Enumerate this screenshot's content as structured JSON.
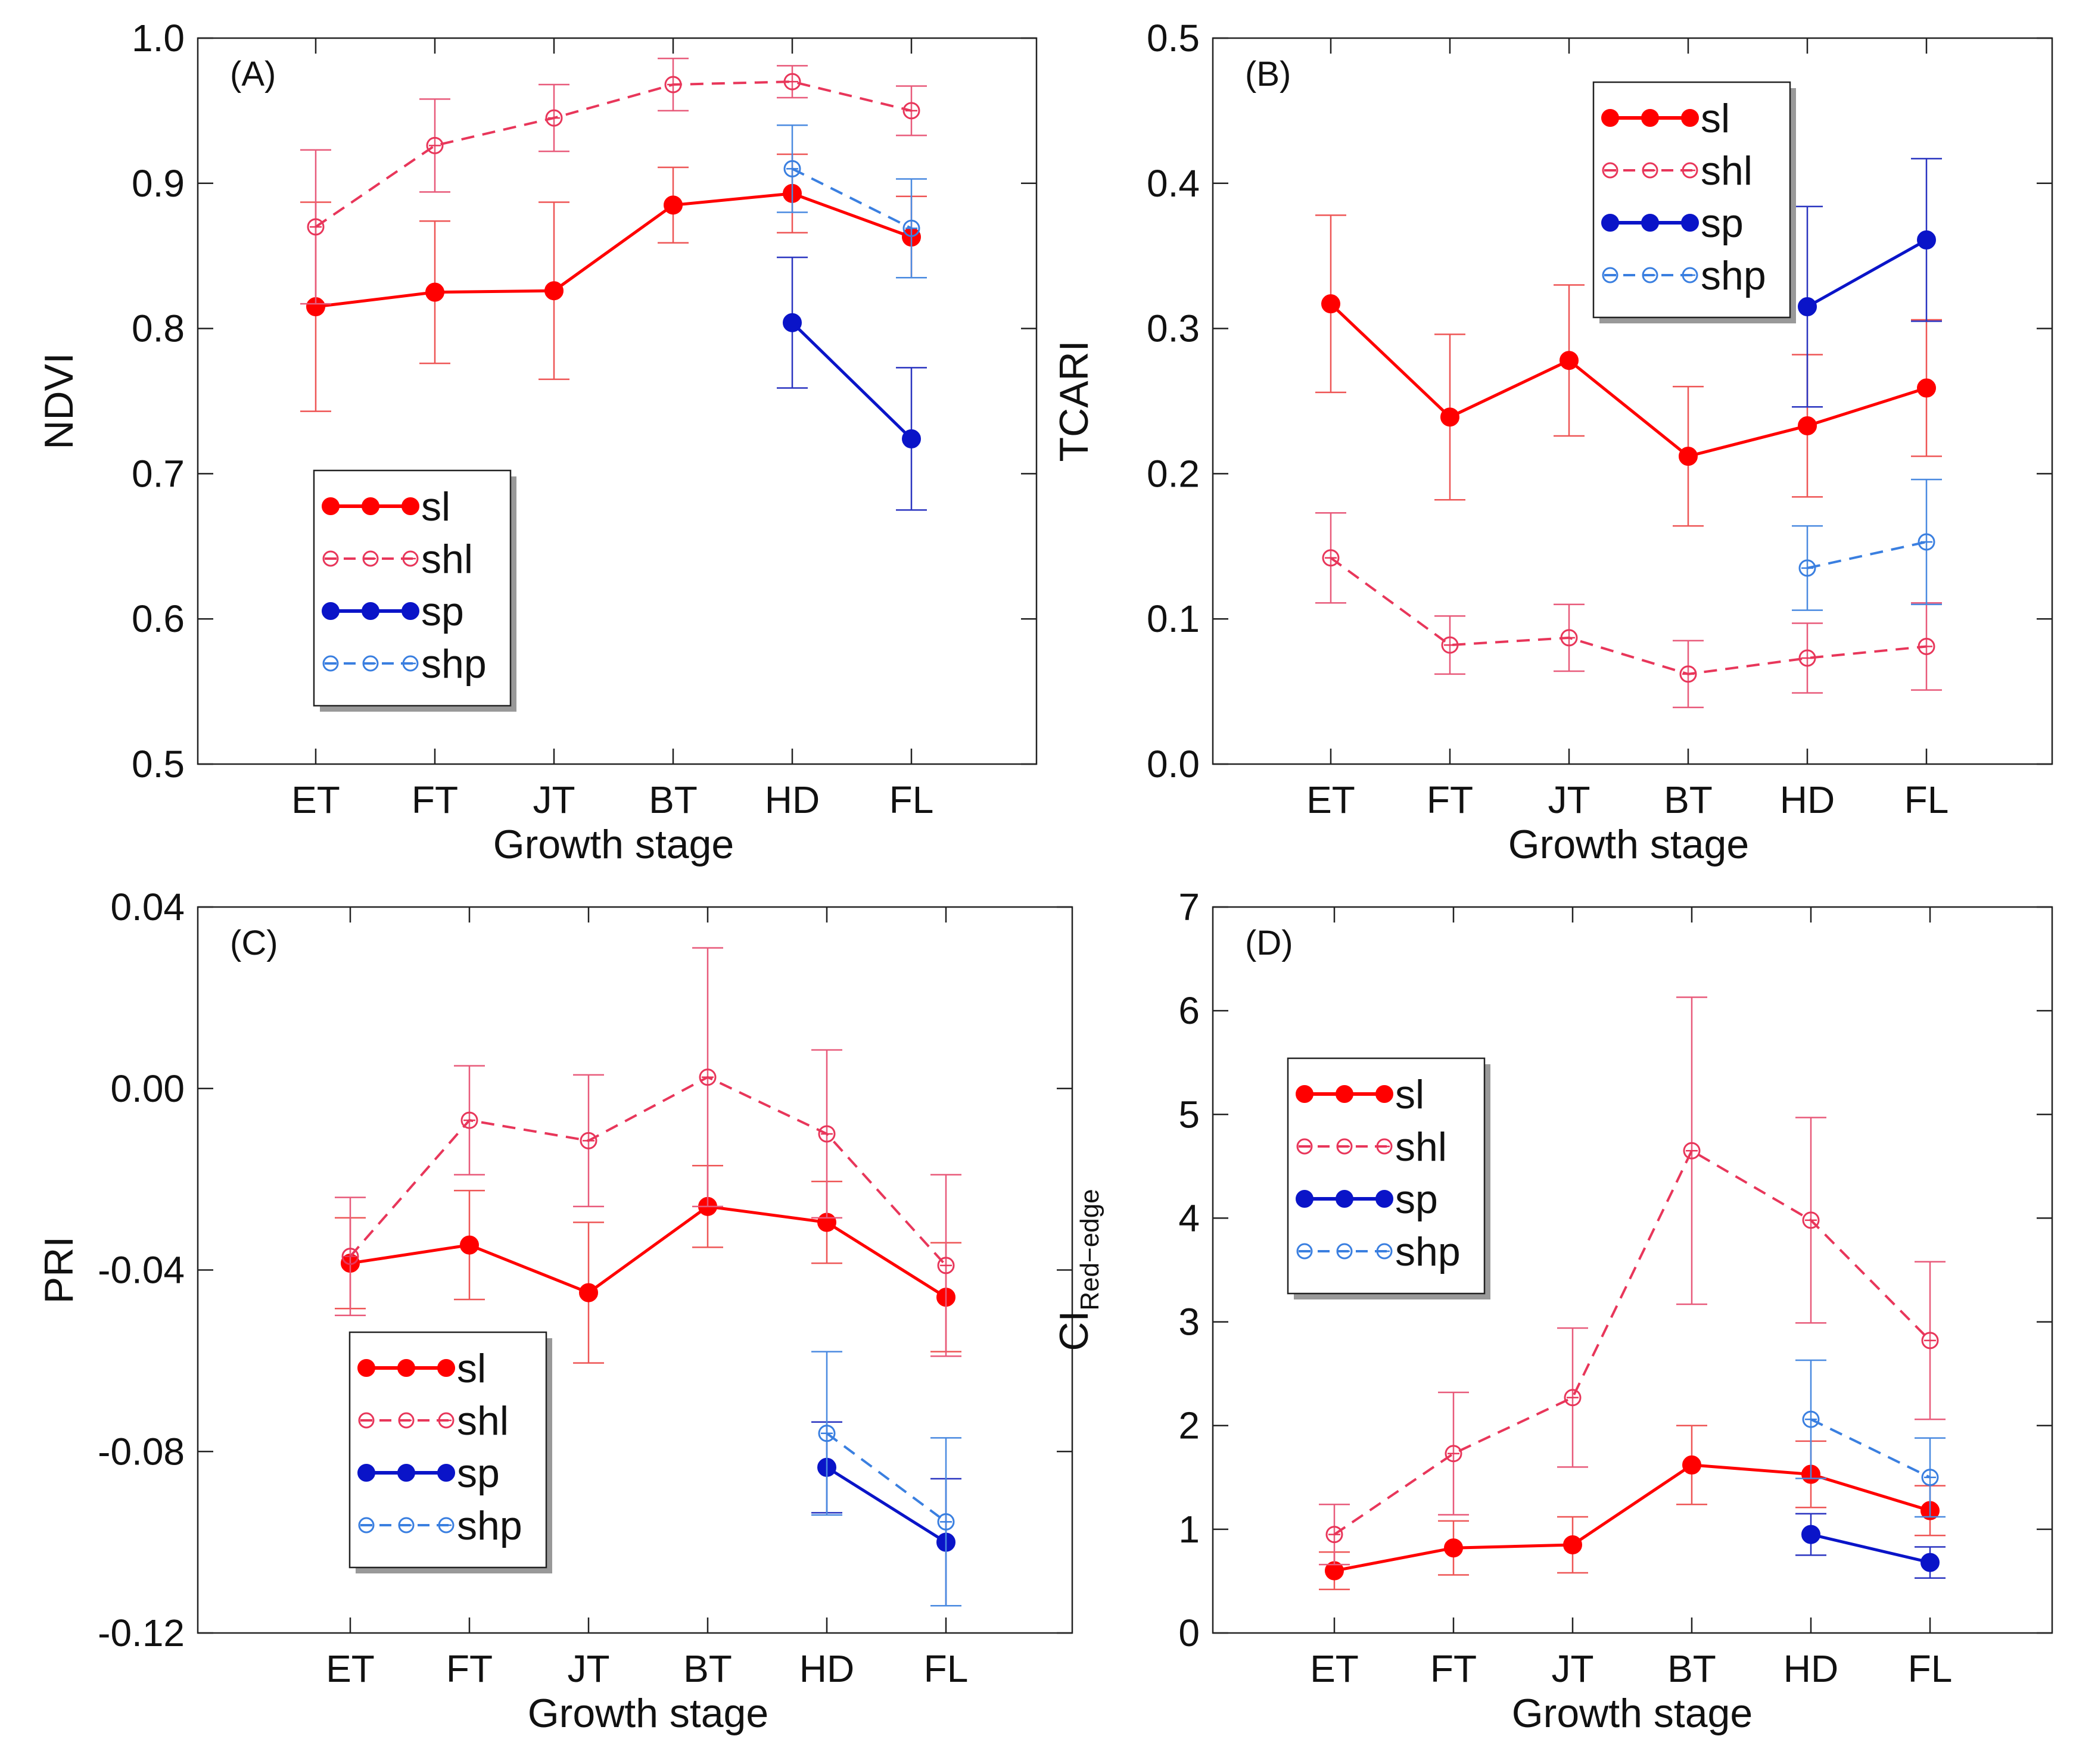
{
  "figure": {
    "colors": {
      "sl": "#ff0000",
      "shl": "#e8365a",
      "sp": "#0a14c8",
      "shp": "#3a7fe0",
      "sl_err": "#ee5555",
      "shl_err": "#e85a7a",
      "sp_err": "#2a34c0",
      "shp_err": "#4a8ae0",
      "axis": "#222222",
      "legend_shadow": "#999999"
    },
    "legend_entries": [
      "sl",
      "shl",
      "sp",
      "shp"
    ]
  },
  "chart_data": [
    {
      "id": "A",
      "type": "line",
      "panel_label": "(A)",
      "xlabel": "Growth stage",
      "ylabel": "NDVI",
      "ylabel_sub": "",
      "categories": [
        "ET",
        "FT",
        "JT",
        "BT",
        "HD",
        "FL"
      ],
      "ylim": [
        0.5,
        1.0
      ],
      "yticks": [
        0.5,
        0.6,
        0.7,
        0.8,
        0.9,
        1.0
      ],
      "ytick_labels": [
        "0.5",
        "0.6",
        "0.7",
        "0.8",
        "0.9",
        "1.0"
      ],
      "legend_position": "lower-left",
      "series": [
        {
          "name": "sl",
          "style": "solid-filled",
          "x": [
            0,
            1,
            2,
            3,
            4,
            5
          ],
          "values": [
            0.815,
            0.825,
            0.826,
            0.885,
            0.893,
            0.863
          ],
          "errors": [
            0.072,
            0.049,
            0.061,
            0.026,
            0.027,
            0.028
          ]
        },
        {
          "name": "shl",
          "style": "dashed-open",
          "x": [
            0,
            1,
            2,
            3,
            4,
            5
          ],
          "values": [
            0.87,
            0.926,
            0.945,
            0.968,
            0.97,
            0.95
          ],
          "errors": [
            0.053,
            0.032,
            0.023,
            0.018,
            0.011,
            0.017
          ]
        },
        {
          "name": "sp",
          "style": "solid-filled",
          "x": [
            4,
            5
          ],
          "values": [
            0.804,
            0.724
          ],
          "errors": [
            0.045,
            0.049
          ]
        },
        {
          "name": "shp",
          "style": "dashed-open",
          "x": [
            4,
            5
          ],
          "values": [
            0.91,
            0.869
          ],
          "errors": [
            0.03,
            0.034
          ]
        }
      ]
    },
    {
      "id": "B",
      "type": "line",
      "panel_label": "(B)",
      "xlabel": "Growth stage",
      "ylabel": "TCARI",
      "ylabel_sub": "",
      "categories": [
        "ET",
        "FT",
        "JT",
        "BT",
        "HD",
        "FL"
      ],
      "ylim": [
        0.0,
        0.5
      ],
      "yticks": [
        0.0,
        0.1,
        0.2,
        0.3,
        0.4,
        0.5
      ],
      "ytick_labels": [
        "0.0",
        "0.1",
        "0.2",
        "0.3",
        "0.4",
        "0.5"
      ],
      "legend_position": "top-right",
      "series": [
        {
          "name": "sl",
          "style": "solid-filled",
          "x": [
            0,
            1,
            2,
            3,
            4,
            5
          ],
          "values": [
            0.317,
            0.239,
            0.278,
            0.212,
            0.233,
            0.259
          ],
          "errors": [
            0.061,
            0.057,
            0.052,
            0.048,
            0.049,
            0.047
          ]
        },
        {
          "name": "shl",
          "style": "dashed-open",
          "x": [
            0,
            1,
            2,
            3,
            4,
            5
          ],
          "values": [
            0.142,
            0.082,
            0.087,
            0.062,
            0.073,
            0.081
          ],
          "errors": [
            0.031,
            0.02,
            0.023,
            0.023,
            0.024,
            0.03
          ]
        },
        {
          "name": "sp",
          "style": "solid-filled",
          "x": [
            4,
            5
          ],
          "values": [
            0.315,
            0.361
          ],
          "errors": [
            0.069,
            0.056
          ]
        },
        {
          "name": "shp",
          "style": "dashed-open",
          "x": [
            4,
            5
          ],
          "values": [
            0.135,
            0.153
          ],
          "errors": [
            0.029,
            0.043
          ]
        }
      ]
    },
    {
      "id": "C",
      "type": "line",
      "panel_label": "(C)",
      "xlabel": "Growth stage",
      "ylabel": "PRI",
      "ylabel_sub": "",
      "categories": [
        "ET",
        "FT",
        "JT",
        "BT",
        "HD",
        "FL"
      ],
      "ylim": [
        -0.12,
        0.04
      ],
      "yticks": [
        -0.12,
        -0.08,
        -0.04,
        0.0,
        0.04
      ],
      "ytick_labels": [
        "-0.12",
        "-0.08",
        "-0.04",
        "0.00",
        "0.04"
      ],
      "legend_position": "lower-left",
      "series": [
        {
          "name": "sl",
          "style": "solid-filled",
          "x": [
            0,
            1,
            2,
            3,
            4,
            5
          ],
          "values": [
            -0.0385,
            -0.0345,
            -0.045,
            -0.026,
            -0.0295,
            -0.046
          ],
          "errors": [
            0.01,
            0.012,
            0.0155,
            0.009,
            0.009,
            0.012
          ]
        },
        {
          "name": "shl",
          "style": "dashed-open",
          "x": [
            0,
            1,
            2,
            3,
            4,
            5
          ],
          "values": [
            -0.037,
            -0.007,
            -0.0115,
            0.0025,
            -0.01,
            -0.039
          ],
          "errors": [
            0.013,
            0.012,
            0.0145,
            0.0285,
            0.0185,
            0.02
          ]
        },
        {
          "name": "sp",
          "style": "solid-filled",
          "x": [
            4,
            5
          ],
          "values": [
            -0.0835,
            -0.1
          ],
          "errors": [
            0.01,
            0.014
          ]
        },
        {
          "name": "shp",
          "style": "dashed-open",
          "x": [
            4,
            5
          ],
          "values": [
            -0.076,
            -0.0955
          ],
          "errors": [
            0.018,
            0.0185
          ]
        }
      ]
    },
    {
      "id": "D",
      "type": "line",
      "panel_label": "(D)",
      "xlabel": "Growth stage",
      "ylabel": "CI",
      "ylabel_sub": "Red−edge",
      "categories": [
        "ET",
        "FT",
        "JT",
        "BT",
        "HD",
        "FL"
      ],
      "ylim": [
        0,
        7
      ],
      "yticks": [
        0,
        1,
        2,
        3,
        4,
        5,
        6,
        7
      ],
      "ytick_labels": [
        "0",
        "1",
        "2",
        "3",
        "4",
        "5",
        "6",
        "7"
      ],
      "legend_position": "top-left",
      "series": [
        {
          "name": "sl",
          "style": "solid-filled",
          "x": [
            0,
            1,
            2,
            3,
            4,
            5
          ],
          "values": [
            0.6,
            0.82,
            0.85,
            1.62,
            1.53,
            1.18
          ],
          "errors": [
            0.18,
            0.26,
            0.27,
            0.38,
            0.32,
            0.24
          ]
        },
        {
          "name": "shl",
          "style": "dashed-open",
          "x": [
            0,
            1,
            2,
            3,
            4,
            5
          ],
          "values": [
            0.95,
            1.73,
            2.27,
            4.65,
            3.98,
            2.82
          ],
          "errors": [
            0.29,
            0.59,
            0.67,
            1.48,
            0.99,
            0.76
          ]
        },
        {
          "name": "sp",
          "style": "solid-filled",
          "x": [
            4,
            5
          ],
          "values": [
            0.95,
            0.68
          ],
          "errors": [
            0.2,
            0.15
          ]
        },
        {
          "name": "shp",
          "style": "dashed-open",
          "x": [
            4,
            5
          ],
          "values": [
            2.06,
            1.5
          ],
          "errors": [
            0.57,
            0.38
          ]
        }
      ]
    }
  ]
}
